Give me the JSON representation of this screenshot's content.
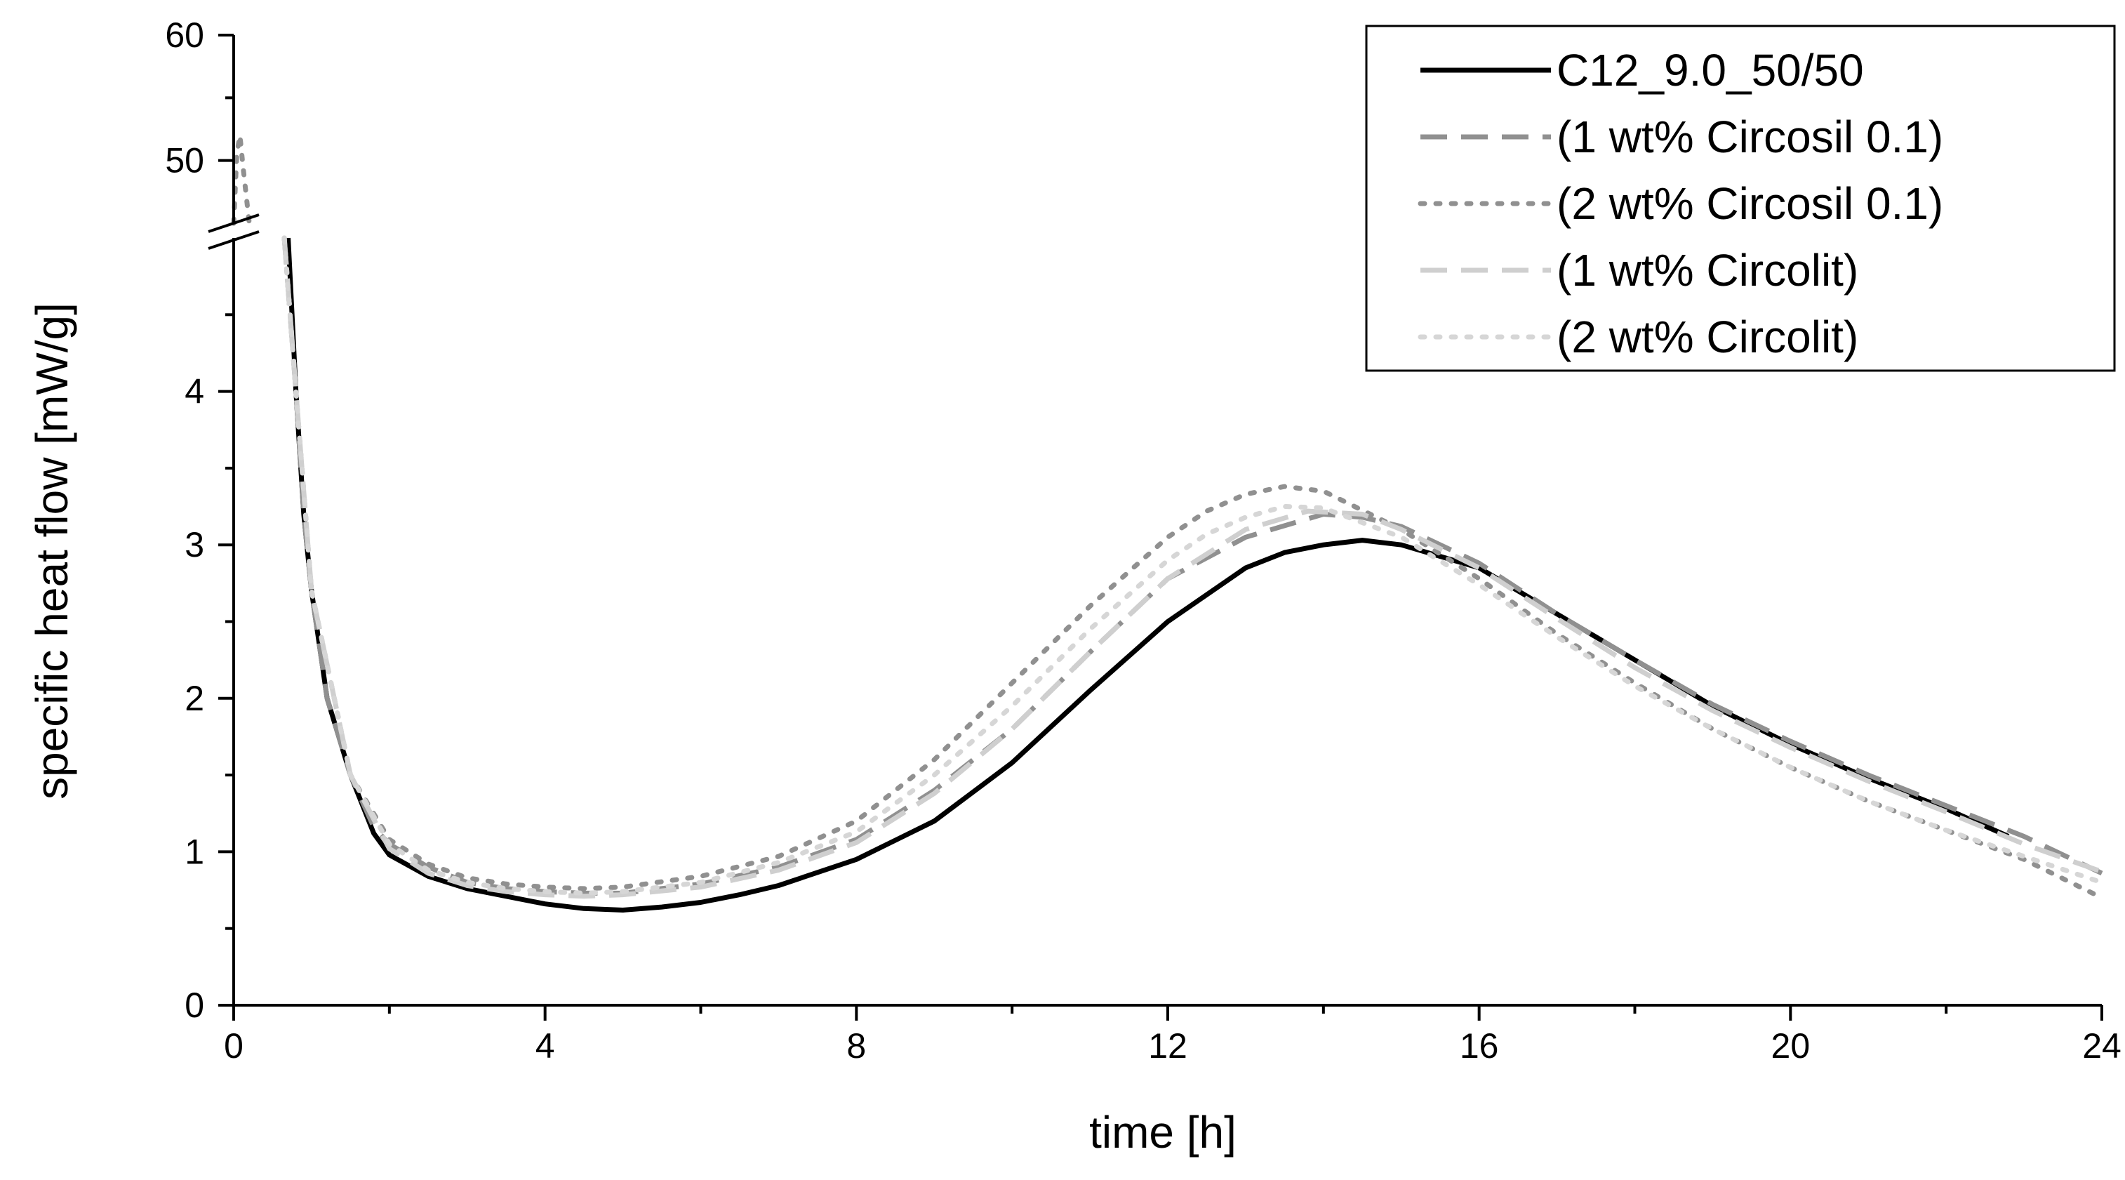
{
  "chart_data": {
    "type": "line",
    "title": "",
    "xlabel": "time [h]",
    "ylabel": "specific heat flow [mW/g]",
    "xlim": [
      0,
      24
    ],
    "xticks": [
      0,
      4,
      8,
      12,
      16,
      20,
      24
    ],
    "y_lower": {
      "range": [
        0,
        5
      ],
      "ticks": [
        0,
        1,
        2,
        3,
        4
      ]
    },
    "y_upper": {
      "range": [
        45,
        60
      ],
      "ticks": [
        50,
        60
      ]
    },
    "axis_break": true,
    "grid": false,
    "legend_position": "top-right",
    "series": [
      {
        "name": "C12_9.0_50/50",
        "color": "#000000",
        "dash": "solid",
        "x": [
          0.7,
          0.8,
          0.9,
          1.0,
          1.2,
          1.5,
          1.8,
          2.0,
          2.5,
          3.0,
          3.5,
          4.0,
          4.5,
          5.0,
          5.5,
          6.0,
          6.5,
          7.0,
          8.0,
          9.0,
          10.0,
          11.0,
          12.0,
          13.0,
          13.5,
          14.0,
          14.5,
          15.0,
          16.0,
          17.0,
          18.0,
          19.0,
          20.0,
          21.0,
          22.0,
          22.8
        ],
        "y": [
          5.0,
          4.0,
          3.2,
          2.7,
          2.0,
          1.5,
          1.12,
          0.98,
          0.84,
          0.76,
          0.71,
          0.66,
          0.63,
          0.62,
          0.64,
          0.67,
          0.72,
          0.78,
          0.95,
          1.2,
          1.58,
          2.05,
          2.5,
          2.85,
          2.95,
          3.0,
          3.03,
          3.0,
          2.85,
          2.55,
          2.25,
          1.95,
          1.7,
          1.48,
          1.28,
          1.1
        ]
      },
      {
        "name": "(1 wt% Circosil 0.1)",
        "color": "#909090",
        "dash": "long-dash",
        "x": [
          0.65,
          0.8,
          0.9,
          1.0,
          1.2,
          1.5,
          1.8,
          2.0,
          2.5,
          3.0,
          3.5,
          4.0,
          4.5,
          5.0,
          6.0,
          7.0,
          8.0,
          9.0,
          10.0,
          11.0,
          12.0,
          13.0,
          14.0,
          14.5,
          15.0,
          16.0,
          17.0,
          18.0,
          19.0,
          20.0,
          21.0,
          22.0,
          23.0,
          24.0
        ],
        "y": [
          5.0,
          4.0,
          3.2,
          2.7,
          2.0,
          1.5,
          1.16,
          1.05,
          0.9,
          0.8,
          0.76,
          0.74,
          0.73,
          0.73,
          0.79,
          0.9,
          1.08,
          1.4,
          1.8,
          2.3,
          2.78,
          3.05,
          3.2,
          3.18,
          3.12,
          2.88,
          2.55,
          2.25,
          1.96,
          1.72,
          1.5,
          1.3,
          1.1,
          0.86
        ]
      },
      {
        "name": "(2 wt% Circosil 0.1)",
        "color": "#909090",
        "dash": "dot",
        "x": [
          0.0,
          0.04,
          0.08,
          0.12,
          0.2,
          0.65,
          0.8,
          1.0,
          1.5,
          2.0,
          2.5,
          3.0,
          3.5,
          4.0,
          4.5,
          5.0,
          6.0,
          7.0,
          8.0,
          9.0,
          10.0,
          11.0,
          12.0,
          12.5,
          13.0,
          13.5,
          14.0,
          15.0,
          16.0,
          17.0,
          18.0,
          19.0,
          20.0,
          21.0,
          22.0,
          23.0,
          24.0
        ],
        "y": [
          45.0,
          50.5,
          52.0,
          49.5,
          45.0,
          5.0,
          4.0,
          2.7,
          1.5,
          1.08,
          0.92,
          0.83,
          0.79,
          0.77,
          0.76,
          0.77,
          0.84,
          0.97,
          1.2,
          1.6,
          2.1,
          2.6,
          3.05,
          3.22,
          3.33,
          3.38,
          3.35,
          3.1,
          2.78,
          2.42,
          2.1,
          1.8,
          1.55,
          1.33,
          1.14,
          0.95,
          0.7
        ]
      },
      {
        "name": "(1 wt% Circolit)",
        "color": "#cfcfcf",
        "dash": "long-dash",
        "x": [
          0.65,
          0.8,
          1.0,
          1.5,
          2.0,
          2.5,
          3.0,
          3.5,
          4.0,
          4.5,
          5.0,
          6.0,
          7.0,
          8.0,
          9.0,
          10.0,
          11.0,
          12.0,
          13.0,
          13.8,
          14.5,
          15.0,
          16.0,
          17.0,
          18.0,
          19.0,
          20.0,
          21.0,
          22.0,
          23.0,
          24.0
        ],
        "y": [
          5.0,
          4.0,
          2.7,
          1.5,
          1.02,
          0.86,
          0.78,
          0.74,
          0.72,
          0.71,
          0.72,
          0.77,
          0.88,
          1.06,
          1.38,
          1.8,
          2.3,
          2.78,
          3.1,
          3.22,
          3.2,
          3.1,
          2.85,
          2.52,
          2.2,
          1.92,
          1.68,
          1.46,
          1.26,
          1.05,
          0.87
        ]
      },
      {
        "name": "(2 wt% Circolit)",
        "color": "#d6d6d6",
        "dash": "dot",
        "x": [
          0.65,
          0.8,
          1.0,
          1.5,
          2.0,
          2.5,
          3.0,
          3.5,
          4.0,
          4.5,
          5.0,
          6.0,
          7.0,
          8.0,
          9.0,
          10.0,
          11.0,
          12.0,
          12.5,
          13.0,
          13.5,
          14.0,
          15.0,
          16.0,
          17.0,
          18.0,
          19.0,
          20.0,
          21.0,
          22.0,
          23.0,
          24.0
        ],
        "y": [
          5.0,
          4.0,
          2.7,
          1.5,
          1.05,
          0.88,
          0.8,
          0.76,
          0.74,
          0.73,
          0.74,
          0.8,
          0.93,
          1.13,
          1.5,
          1.95,
          2.45,
          2.9,
          3.07,
          3.18,
          3.25,
          3.24,
          3.05,
          2.74,
          2.4,
          2.08,
          1.8,
          1.55,
          1.33,
          1.14,
          0.97,
          0.8
        ]
      }
    ]
  }
}
